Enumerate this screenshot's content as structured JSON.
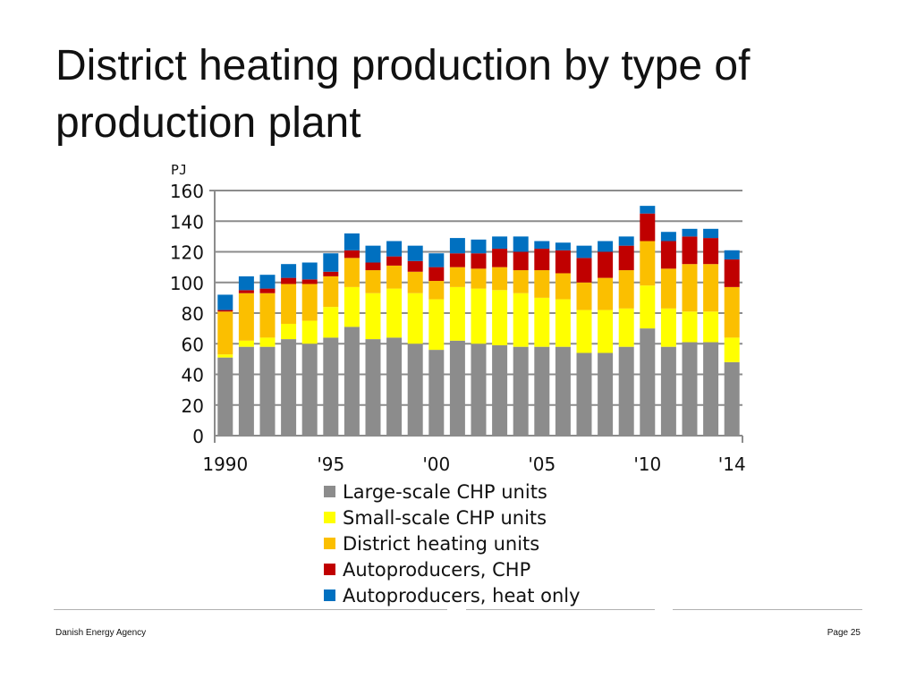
{
  "slide": {
    "title": "District heating production by type of production plant"
  },
  "footer": {
    "organization": "Danish Energy Agency",
    "page": "Page 25"
  },
  "chart_data": {
    "type": "bar",
    "stacked": true,
    "unit": "PJ",
    "ylim": [
      0,
      160
    ],
    "yticks": [
      0,
      20,
      40,
      60,
      80,
      100,
      120,
      140,
      160
    ],
    "grid": true,
    "legend": "bottom",
    "categories": [
      "1990",
      "1991",
      "1992",
      "1993",
      "1994",
      "1995",
      "1996",
      "1997",
      "1998",
      "1999",
      "2000",
      "2001",
      "2002",
      "2003",
      "2004",
      "2005",
      "2006",
      "2007",
      "2008",
      "2009",
      "2010",
      "2011",
      "2012",
      "2013",
      "2014"
    ],
    "x_tick_labels": [
      {
        "category": "1990",
        "label": "1990"
      },
      {
        "category": "1995",
        "label": "'95"
      },
      {
        "category": "2000",
        "label": "'00"
      },
      {
        "category": "2005",
        "label": "'05"
      },
      {
        "category": "2010",
        "label": "'10"
      },
      {
        "category": "2014",
        "label": "'14"
      }
    ],
    "series": [
      {
        "name": "Large-scale CHP units",
        "color": "#8c8c8c",
        "values": [
          51,
          58,
          58,
          63,
          60,
          64,
          71,
          63,
          64,
          60,
          56,
          62,
          60,
          59,
          58,
          58,
          58,
          54,
          54,
          58,
          70,
          58,
          61,
          61,
          48
        ]
      },
      {
        "name": "Small-scale CHP units",
        "color": "#ffff00",
        "values": [
          2,
          4,
          6,
          10,
          15,
          20,
          26,
          30,
          32,
          33,
          33,
          35,
          36,
          36,
          35,
          32,
          31,
          28,
          28,
          25,
          28,
          25,
          20,
          20,
          16
        ]
      },
      {
        "name": "District heating units",
        "color": "#fbbf00",
        "values": [
          28,
          31,
          29,
          26,
          24,
          20,
          19,
          15,
          15,
          14,
          12,
          13,
          13,
          15,
          15,
          18,
          17,
          18,
          21,
          25,
          29,
          26,
          31,
          31,
          33
        ]
      },
      {
        "name": "Autoproducers, CHP",
        "color": "#c00000",
        "values": [
          1,
          2,
          3,
          4,
          3,
          3,
          5,
          5,
          6,
          7,
          9,
          9,
          10,
          12,
          12,
          14,
          15,
          16,
          17,
          16,
          18,
          18,
          18,
          17,
          18
        ]
      },
      {
        "name": "Autoproducers, heat only",
        "color": "#0070c0",
        "values": [
          10,
          9,
          9,
          9,
          11,
          12,
          11,
          11,
          10,
          10,
          9,
          10,
          9,
          8,
          10,
          5,
          5,
          8,
          7,
          6,
          5,
          6,
          5,
          6,
          6
        ]
      }
    ]
  }
}
